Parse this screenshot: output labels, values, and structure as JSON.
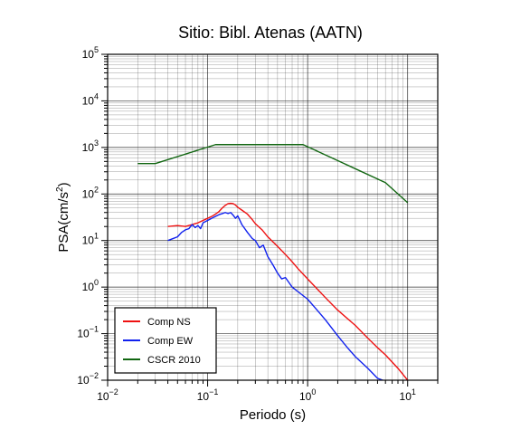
{
  "chart_data": {
    "type": "line",
    "title": "Sitio: Bibl. Atenas (AATN)",
    "xlabel": "Periodo (s)",
    "ylabel_base": "PSA(cm/s",
    "ylabel_sup": "2",
    "ylabel_end": ")",
    "x_scale": "log",
    "y_scale": "log",
    "xlim": [
      0.01,
      20
    ],
    "ylim": [
      0.01,
      100000
    ],
    "grid": true,
    "legend_position": "bottom-left",
    "x_ticks": [
      {
        "base": "10",
        "exp": "−2",
        "value": 0.01
      },
      {
        "base": "10",
        "exp": "−1",
        "value": 0.1
      },
      {
        "base": "10",
        "exp": "0",
        "value": 1
      },
      {
        "base": "10",
        "exp": "1",
        "value": 10
      }
    ],
    "y_ticks": [
      {
        "base": "10",
        "exp": "−2",
        "value": 0.01
      },
      {
        "base": "10",
        "exp": "−1",
        "value": 0.1
      },
      {
        "base": "10",
        "exp": "0",
        "value": 1
      },
      {
        "base": "10",
        "exp": "1",
        "value": 10
      },
      {
        "base": "10",
        "exp": "2",
        "value": 100
      },
      {
        "base": "10",
        "exp": "3",
        "value": 1000
      },
      {
        "base": "10",
        "exp": "4",
        "value": 10000
      },
      {
        "base": "10",
        "exp": "5",
        "value": 100000
      }
    ],
    "series": [
      {
        "name": "Comp NS",
        "color": "#ee1111",
        "x": [
          0.04,
          0.05,
          0.06,
          0.07,
          0.08,
          0.09,
          0.1,
          0.11,
          0.12,
          0.13,
          0.14,
          0.15,
          0.16,
          0.17,
          0.18,
          0.19,
          0.2,
          0.22,
          0.25,
          0.28,
          0.3,
          0.35,
          0.4,
          0.5,
          0.6,
          0.7,
          0.8,
          1.0,
          1.5,
          2.0,
          3.0,
          4.0,
          5.0,
          6.0,
          8.0,
          10.0
        ],
        "y": [
          20,
          21,
          20,
          22,
          24,
          27,
          30,
          33,
          37,
          42,
          50,
          57,
          62,
          63,
          62,
          58,
          52,
          45,
          37,
          28,
          23,
          17,
          12,
          7.5,
          5,
          3.5,
          2.5,
          1.5,
          0.6,
          0.32,
          0.15,
          0.08,
          0.05,
          0.035,
          0.018,
          0.01
        ]
      },
      {
        "name": "Comp EW",
        "color": "#1122ee",
        "x": [
          0.04,
          0.045,
          0.05,
          0.055,
          0.06,
          0.065,
          0.07,
          0.075,
          0.08,
          0.085,
          0.09,
          0.1,
          0.11,
          0.12,
          0.13,
          0.14,
          0.15,
          0.16,
          0.17,
          0.18,
          0.19,
          0.2,
          0.22,
          0.25,
          0.28,
          0.3,
          0.33,
          0.36,
          0.4,
          0.45,
          0.5,
          0.55,
          0.6,
          0.7,
          0.8,
          1.0,
          1.2,
          1.5,
          2.0,
          2.5,
          3.0,
          4.0,
          5.0,
          6.0
        ],
        "y": [
          10,
          11,
          12,
          15,
          17,
          18,
          22,
          19,
          21,
          18,
          24,
          27,
          30,
          33,
          36,
          38,
          40,
          38,
          40,
          35,
          30,
          34,
          22,
          15,
          11,
          10,
          7,
          8,
          4.5,
          3,
          2,
          1.5,
          1.6,
          1,
          0.8,
          0.55,
          0.35,
          0.2,
          0.09,
          0.05,
          0.032,
          0.018,
          0.011,
          0.0095
        ]
      },
      {
        "name": "CSCR 2010",
        "color": "#116611",
        "x": [
          0.02,
          0.03,
          0.12,
          0.9,
          6.0,
          10.0
        ],
        "y": [
          450,
          450,
          1150,
          1150,
          175,
          65
        ]
      }
    ]
  }
}
